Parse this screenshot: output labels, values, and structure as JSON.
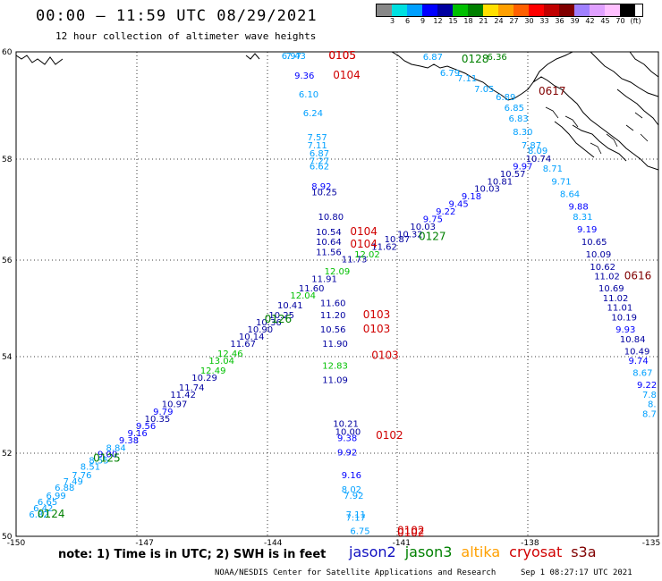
{
  "title": "00:00 – 11:59 UTC 08/29/2021",
  "subtitle": "12 hour collection of altimeter wave heights",
  "legend": {
    "unit": "(ft)",
    "colors": [
      "#888888",
      "#00e0e0",
      "#00a0ff",
      "#0000ff",
      "#0000a0",
      "#00c000",
      "#008000",
      "#ffe000",
      "#ffa000",
      "#ff6000",
      "#ff0000",
      "#c00000",
      "#800000",
      "#a080ff",
      "#e0a0ff",
      "#ffc0ff",
      "#000000"
    ],
    "ticks": [
      "3",
      "6",
      "9",
      "12",
      "15",
      "18",
      "21",
      "24",
      "27",
      "30",
      "33",
      "36",
      "39",
      "42",
      "45",
      "70"
    ]
  },
  "axes": {
    "lon_labels": [
      "-150",
      "-147",
      "-144",
      "-141",
      "-138",
      "-135"
    ],
    "lat_labels": [
      "60",
      "58",
      "56",
      "54",
      "52",
      "50"
    ]
  },
  "note": "note:  1) Time is in UTC;  2) SWH is in feet",
  "satellites": [
    {
      "name": "jason2",
      "color": "#1010c0"
    },
    {
      "name": "jason3",
      "color": "#008000"
    },
    {
      "name": "altika",
      "color": "#ffa000"
    },
    {
      "name": "cryosat",
      "color": "#d00000"
    },
    {
      "name": "s3a",
      "color": "#800000"
    }
  ],
  "credit": "NOAA/NESDIS Center for Satellite Applications and Research",
  "timestamp": "Sep  1 08:27:17 UTC 2021",
  "time_labels": [
    {
      "text": "0105",
      "lon": -142.7,
      "lat": 60.0,
      "color": "#d00000"
    },
    {
      "text": "0105",
      "lon": -142.7,
      "lat": 59.9,
      "color": "#d00000"
    },
    {
      "text": "0104",
      "lon": -142.6,
      "lat": 59.5,
      "color": "#d00000"
    },
    {
      "text": "0104",
      "lon": -142.2,
      "lat": 56.5,
      "color": "#d00000"
    },
    {
      "text": "0104",
      "lon": -142.2,
      "lat": 56.25,
      "color": "#d00000"
    },
    {
      "text": "0103",
      "lon": -141.9,
      "lat": 54.8,
      "color": "#d00000"
    },
    {
      "text": "0103",
      "lon": -141.9,
      "lat": 54.5,
      "color": "#d00000"
    },
    {
      "text": "0103",
      "lon": -141.7,
      "lat": 53.95,
      "color": "#d00000"
    },
    {
      "text": "0102",
      "lon": -141.6,
      "lat": 52.3,
      "color": "#d00000"
    },
    {
      "text": "0102",
      "lon": -141.1,
      "lat": 50.05,
      "color": "#d00000"
    },
    {
      "text": "0102",
      "lon": -141.1,
      "lat": 49.95,
      "color": "#d00000"
    },
    {
      "text": "0617",
      "lon": -137.8,
      "lat": 59.2,
      "color": "#800000"
    },
    {
      "text": "0616",
      "lon": -135.8,
      "lat": 55.6,
      "color": "#800000"
    },
    {
      "text": "0127",
      "lon": -140.6,
      "lat": 56.4,
      "color": "#008000"
    },
    {
      "text": "0126",
      "lon": -144.2,
      "lat": 54.7,
      "color": "#008000"
    },
    {
      "text": "0125",
      "lon": -148.2,
      "lat": 51.8,
      "color": "#008000"
    },
    {
      "text": "0124",
      "lon": -149.5,
      "lat": 50.45,
      "color": "#008000"
    },
    {
      "text": "0128",
      "lon": -139.6,
      "lat": 59.8,
      "color": "#008000"
    }
  ],
  "wave_heights": [
    {
      "v": "6.97",
      "lon": -143.8,
      "lat": 60.0,
      "color": "#00a0ff"
    },
    {
      "v": "7.43",
      "lon": -143.7,
      "lat": 59.9,
      "color": "#00a0ff"
    },
    {
      "v": "9.36",
      "lon": -143.5,
      "lat": 59.5,
      "color": "#0000ff"
    },
    {
      "v": "6.10",
      "lon": -143.4,
      "lat": 59.15,
      "color": "#00a0ff"
    },
    {
      "v": "6.24",
      "lon": -143.3,
      "lat": 58.8,
      "color": "#00a0ff"
    },
    {
      "v": "7.57",
      "lon": -143.2,
      "lat": 58.35,
      "color": "#00a0ff"
    },
    {
      "v": "7.11",
      "lon": -143.2,
      "lat": 58.2,
      "color": "#00a0ff"
    },
    {
      "v": "6.87",
      "lon": -143.15,
      "lat": 58.05,
      "color": "#00a0ff"
    },
    {
      "v": "7.27",
      "lon": -143.15,
      "lat": 57.9,
      "color": "#00a0ff"
    },
    {
      "v": "6.62",
      "lon": -143.15,
      "lat": 57.8,
      "color": "#00a0ff"
    },
    {
      "v": "8.92",
      "lon": -143.1,
      "lat": 57.4,
      "color": "#0000ff"
    },
    {
      "v": "10.25",
      "lon": -143.1,
      "lat": 57.28,
      "color": "#0000a0"
    },
    {
      "v": "10.80",
      "lon": -142.95,
      "lat": 56.8,
      "color": "#0000a0"
    },
    {
      "v": "10.54",
      "lon": -143.0,
      "lat": 56.5,
      "color": "#0000a0"
    },
    {
      "v": "10.64",
      "lon": -143.0,
      "lat": 56.3,
      "color": "#0000a0"
    },
    {
      "v": "11.56",
      "lon": -143.0,
      "lat": 56.1,
      "color": "#0000a0"
    },
    {
      "v": "11.60",
      "lon": -142.9,
      "lat": 55.05,
      "color": "#0000a0"
    },
    {
      "v": "11.20",
      "lon": -142.9,
      "lat": 54.8,
      "color": "#0000a0"
    },
    {
      "v": "10.56",
      "lon": -142.9,
      "lat": 54.5,
      "color": "#0000a0"
    },
    {
      "v": "11.90",
      "lon": -142.85,
      "lat": 54.2,
      "color": "#0000a0"
    },
    {
      "v": "12.83",
      "lon": -142.85,
      "lat": 53.75,
      "color": "#00c000"
    },
    {
      "v": "11.09",
      "lon": -142.85,
      "lat": 53.45,
      "color": "#0000a0"
    },
    {
      "v": "10.21",
      "lon": -142.6,
      "lat": 52.55,
      "color": "#0000a0"
    },
    {
      "v": "10.00",
      "lon": -142.55,
      "lat": 52.38,
      "color": "#0000a0"
    },
    {
      "v": "9.38",
      "lon": -142.5,
      "lat": 52.25,
      "color": "#0000ff"
    },
    {
      "v": "9.92",
      "lon": -142.5,
      "lat": 51.95,
      "color": "#0000ff"
    },
    {
      "v": "9.16",
      "lon": -142.4,
      "lat": 51.4,
      "color": "#0000ff"
    },
    {
      "v": "8.02",
      "lon": -142.4,
      "lat": 51.05,
      "color": "#00a0ff"
    },
    {
      "v": "7.92",
      "lon": -142.35,
      "lat": 50.9,
      "color": "#00a0ff"
    },
    {
      "v": "7.11",
      "lon": -142.3,
      "lat": 50.45,
      "color": "#00a0ff"
    },
    {
      "v": "7.17",
      "lon": -142.3,
      "lat": 50.38,
      "color": "#00a0ff"
    },
    {
      "v": "6.75",
      "lon": -142.2,
      "lat": 50.05,
      "color": "#00a0ff"
    },
    {
      "v": "6.82",
      "lon": -149.7,
      "lat": 50.45,
      "color": "#00a0ff"
    },
    {
      "v": "6.42",
      "lon": -149.6,
      "lat": 50.6,
      "color": "#00a0ff"
    },
    {
      "v": "6.65",
      "lon": -149.5,
      "lat": 50.75,
      "color": "#00a0ff"
    },
    {
      "v": "6.99",
      "lon": -149.3,
      "lat": 50.9,
      "color": "#00a0ff"
    },
    {
      "v": "6.88",
      "lon": -149.1,
      "lat": 51.1,
      "color": "#00a0ff"
    },
    {
      "v": "7.49",
      "lon": -148.9,
      "lat": 51.25,
      "color": "#00a0ff"
    },
    {
      "v": "7.76",
      "lon": -148.7,
      "lat": 51.4,
      "color": "#00a0ff"
    },
    {
      "v": "8.51",
      "lon": -148.5,
      "lat": 51.6,
      "color": "#00a0ff"
    },
    {
      "v": "8.55",
      "lon": -148.3,
      "lat": 51.75,
      "color": "#00a0ff"
    },
    {
      "v": "9.00",
      "lon": -148.1,
      "lat": 51.9,
      "color": "#0000ff"
    },
    {
      "v": "8.84",
      "lon": -147.9,
      "lat": 52.05,
      "color": "#00a0ff"
    },
    {
      "v": "9.38",
      "lon": -147.6,
      "lat": 52.2,
      "color": "#0000ff"
    },
    {
      "v": "9.16",
      "lon": -147.4,
      "lat": 52.35,
      "color": "#0000ff"
    },
    {
      "v": "9.56",
      "lon": -147.2,
      "lat": 52.5,
      "color": "#0000ff"
    },
    {
      "v": "10.35",
      "lon": -147.0,
      "lat": 52.65,
      "color": "#0000a0"
    },
    {
      "v": "9.79",
      "lon": -146.8,
      "lat": 52.8,
      "color": "#0000ff"
    },
    {
      "v": "10.97",
      "lon": -146.6,
      "lat": 52.95,
      "color": "#0000a0"
    },
    {
      "v": "11.42",
      "lon": -146.4,
      "lat": 53.15,
      "color": "#0000a0"
    },
    {
      "v": "11.74",
      "lon": -146.2,
      "lat": 53.3,
      "color": "#0000a0"
    },
    {
      "v": "10.29",
      "lon": -145.9,
      "lat": 53.5,
      "color": "#0000a0"
    },
    {
      "v": "12.49",
      "lon": -145.7,
      "lat": 53.65,
      "color": "#00c000"
    },
    {
      "v": "13.04",
      "lon": -145.5,
      "lat": 53.85,
      "color": "#00c000"
    },
    {
      "v": "12.46",
      "lon": -145.3,
      "lat": 54.0,
      "color": "#00c000"
    },
    {
      "v": "11.67",
      "lon": -145.0,
      "lat": 54.2,
      "color": "#0000a0"
    },
    {
      "v": "10.14",
      "lon": -144.8,
      "lat": 54.35,
      "color": "#0000a0"
    },
    {
      "v": "10.90",
      "lon": -144.6,
      "lat": 54.5,
      "color": "#0000a0"
    },
    {
      "v": "10.36",
      "lon": -144.4,
      "lat": 54.65,
      "color": "#0000a0"
    },
    {
      "v": "10.25",
      "lon": -144.1,
      "lat": 54.8,
      "color": "#0000a0"
    },
    {
      "v": "10.41",
      "lon": -143.9,
      "lat": 55.0,
      "color": "#0000a0"
    },
    {
      "v": "12.04",
      "lon": -143.6,
      "lat": 55.2,
      "color": "#00c000"
    },
    {
      "v": "11.60",
      "lon": -143.4,
      "lat": 55.35,
      "color": "#0000a0"
    },
    {
      "v": "11.91",
      "lon": -143.1,
      "lat": 55.55,
      "color": "#0000a0"
    },
    {
      "v": "12.09",
      "lon": -142.8,
      "lat": 55.7,
      "color": "#00c000"
    },
    {
      "v": "11.73",
      "lon": -142.4,
      "lat": 55.95,
      "color": "#0000a0"
    },
    {
      "v": "12.02",
      "lon": -142.1,
      "lat": 56.05,
      "color": "#00c000"
    },
    {
      "v": "11.62",
      "lon": -141.7,
      "lat": 56.2,
      "color": "#0000a0"
    },
    {
      "v": "10.87",
      "lon": -141.4,
      "lat": 56.35,
      "color": "#0000a0"
    },
    {
      "v": "10.32",
      "lon": -141.1,
      "lat": 56.45,
      "color": "#0000a0"
    },
    {
      "v": "10.03",
      "lon": -140.8,
      "lat": 56.6,
      "color": "#0000a0"
    },
    {
      "v": "9.75",
      "lon": -140.5,
      "lat": 56.75,
      "color": "#0000ff"
    },
    {
      "v": "9.22",
      "lon": -140.2,
      "lat": 56.9,
      "color": "#0000ff"
    },
    {
      "v": "9.45",
      "lon": -139.9,
      "lat": 57.05,
      "color": "#0000ff"
    },
    {
      "v": "9.18",
      "lon": -139.6,
      "lat": 57.2,
      "color": "#0000ff"
    },
    {
      "v": "10.03",
      "lon": -139.3,
      "lat": 57.35,
      "color": "#0000a0"
    },
    {
      "v": "10.81",
      "lon": -139.0,
      "lat": 57.5,
      "color": "#0000a0"
    },
    {
      "v": "10.57",
      "lon": -138.7,
      "lat": 57.65,
      "color": "#0000a0"
    },
    {
      "v": "9.97",
      "lon": -138.4,
      "lat": 57.8,
      "color": "#0000ff"
    },
    {
      "v": "10.74",
      "lon": -138.1,
      "lat": 57.95,
      "color": "#0000a0"
    },
    {
      "v": "8.71",
      "lon": -137.7,
      "lat": 57.75,
      "color": "#00a0ff"
    },
    {
      "v": "9.71",
      "lon": -137.5,
      "lat": 57.5,
      "color": "#00a0ff"
    },
    {
      "v": "8.64",
      "lon": -137.3,
      "lat": 57.25,
      "color": "#00a0ff"
    },
    {
      "v": "9.88",
      "lon": -137.1,
      "lat": 57.0,
      "color": "#0000ff"
    },
    {
      "v": "8.31",
      "lon": -137.0,
      "lat": 56.8,
      "color": "#00a0ff"
    },
    {
      "v": "9.19",
      "lon": -136.9,
      "lat": 56.55,
      "color": "#0000ff"
    },
    {
      "v": "10.65",
      "lon": -136.8,
      "lat": 56.3,
      "color": "#0000a0"
    },
    {
      "v": "10.09",
      "lon": -136.7,
      "lat": 56.05,
      "color": "#0000a0"
    },
    {
      "v": "10.62",
      "lon": -136.6,
      "lat": 55.8,
      "color": "#0000a0"
    },
    {
      "v": "11.02",
      "lon": -136.5,
      "lat": 55.6,
      "color": "#0000a0"
    },
    {
      "v": "10.69",
      "lon": -136.4,
      "lat": 55.35,
      "color": "#0000a0"
    },
    {
      "v": "11.02",
      "lon": -136.3,
      "lat": 55.15,
      "color": "#0000a0"
    },
    {
      "v": "11.01",
      "lon": -136.2,
      "lat": 54.95,
      "color": "#0000a0"
    },
    {
      "v": "10.19",
      "lon": -136.1,
      "lat": 54.75,
      "color": "#0000a0"
    },
    {
      "v": "9.93",
      "lon": -136.0,
      "lat": 54.5,
      "color": "#0000ff"
    },
    {
      "v": "10.84",
      "lon": -135.9,
      "lat": 54.3,
      "color": "#0000a0"
    },
    {
      "v": "10.49",
      "lon": -135.8,
      "lat": 54.05,
      "color": "#0000a0"
    },
    {
      "v": "9.74",
      "lon": -135.7,
      "lat": 53.85,
      "color": "#0000ff"
    },
    {
      "v": "8.67",
      "lon": -135.6,
      "lat": 53.6,
      "color": "#00a0ff"
    },
    {
      "v": "9.22",
      "lon": -135.45,
      "lat": 53.35,
      "color": "#0000ff"
    },
    {
      "v": "7.8",
      "lon": -135.3,
      "lat": 53.15,
      "color": "#00a0ff"
    },
    {
      "v": "8.",
      "lon": -135.25,
      "lat": 52.95,
      "color": "#00a0ff"
    },
    {
      "v": "8.7",
      "lon": -135.2,
      "lat": 52.75,
      "color": "#00a0ff"
    },
    {
      "v": "6.87",
      "lon": -140.5,
      "lat": 59.85,
      "color": "#00a0ff"
    },
    {
      "v": "6.79",
      "lon": -140.1,
      "lat": 59.55,
      "color": "#00a0ff"
    },
    {
      "v": "7.11",
      "lon": -139.7,
      "lat": 59.45,
      "color": "#00a0ff"
    },
    {
      "v": "7.05",
      "lon": -139.3,
      "lat": 59.25,
      "color": "#00a0ff"
    },
    {
      "v": "6.89",
      "lon": -138.8,
      "lat": 59.1,
      "color": "#00a0ff"
    },
    {
      "v": "6.85",
      "lon": -138.6,
      "lat": 58.9,
      "color": "#00a0ff"
    },
    {
      "v": "6.83",
      "lon": -138.5,
      "lat": 58.7,
      "color": "#00a0ff"
    },
    {
      "v": "8.30",
      "lon": -138.4,
      "lat": 58.45,
      "color": "#00a0ff"
    },
    {
      "v": "7.87",
      "lon": -138.2,
      "lat": 58.2,
      "color": "#00a0ff"
    },
    {
      "v": "8.09",
      "lon": -138.05,
      "lat": 58.1,
      "color": "#00a0ff"
    },
    {
      "v": "6.36",
      "lon": -139.0,
      "lat": 59.85,
      "color": "#008000"
    }
  ]
}
